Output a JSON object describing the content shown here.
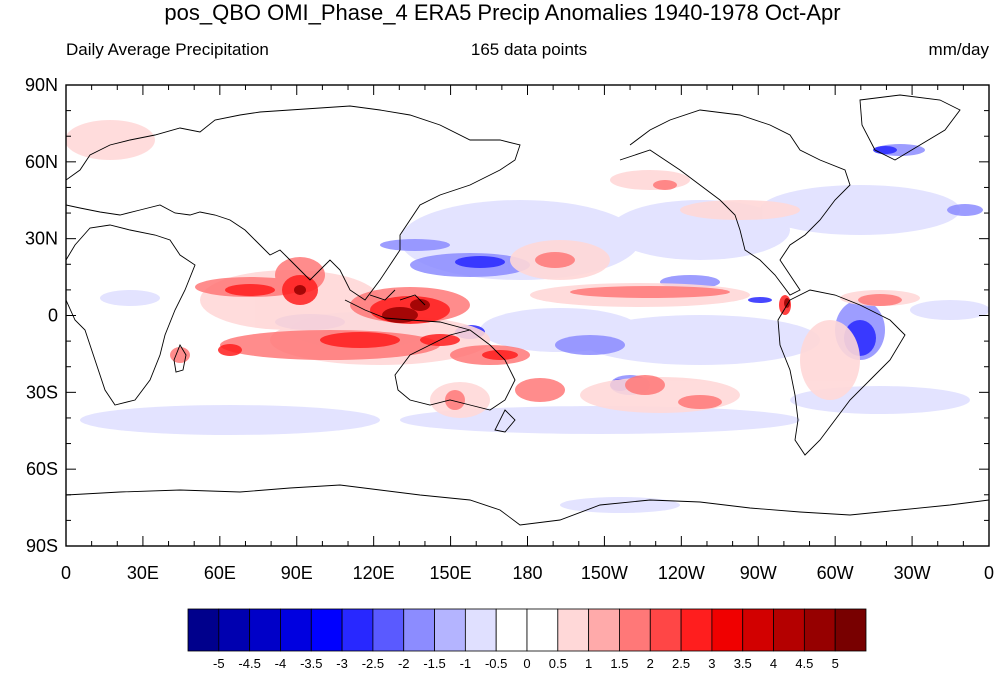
{
  "title": "pos_QBO OMI_Phase_4 ERA5 Precip Anomalies 1940-1978 Oct-Apr",
  "subtitle_left": "Daily Average Precipitation",
  "subtitle_center": "165 data points",
  "subtitle_right": "mm/day",
  "lat_labels": [
    "90N",
    "60N",
    "30N",
    "0",
    "30S",
    "60S",
    "90S"
  ],
  "lon_labels": [
    "0",
    "30E",
    "60E",
    "90E",
    "120E",
    "150E",
    "180",
    "150W",
    "120W",
    "90W",
    "60W",
    "30W",
    "0"
  ],
  "colorbar": {
    "labels": [
      "-5",
      "-4.5",
      "-4",
      "-3.5",
      "-3",
      "-2.5",
      "-2",
      "-1.5",
      "-1",
      "-0.5",
      "0",
      "0.5",
      "1",
      "1.5",
      "2",
      "2.5",
      "3",
      "3.5",
      "4",
      "4.5",
      "5"
    ],
    "colors": [
      "#00008c",
      "#0000b0",
      "#0000c8",
      "#0000e0",
      "#0000ff",
      "#2828ff",
      "#5a5aff",
      "#8c8cff",
      "#b4b4ff",
      "#e0e0ff",
      "#ffffff",
      "#ffffff",
      "#ffd8d8",
      "#ffaaaa",
      "#ff7878",
      "#ff4646",
      "#ff1e1e",
      "#f00000",
      "#d20000",
      "#b40000",
      "#960000",
      "#780000"
    ]
  }
}
